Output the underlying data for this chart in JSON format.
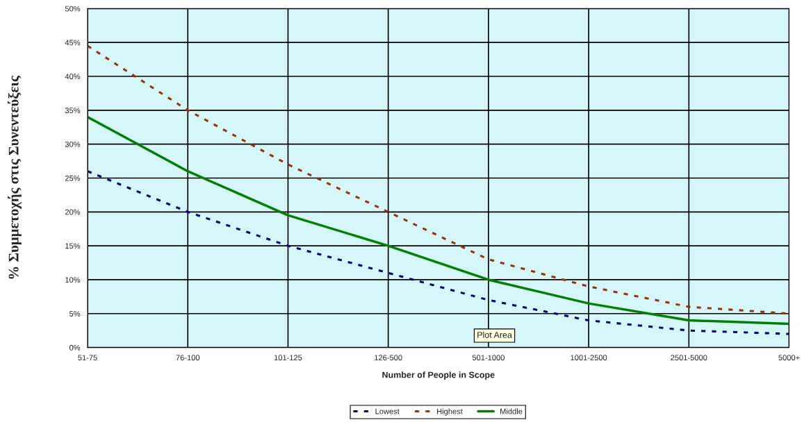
{
  "chart_data": {
    "type": "line",
    "xlabel": "Number of People in Scope",
    "ylabel": "% Συμμετοχής στις Συνεντεύξεις",
    "categories": [
      "51-75",
      "76-100",
      "101-125",
      "126-500",
      "501-1000",
      "1001-2500",
      "2501-5000",
      "5000+"
    ],
    "series": [
      {
        "name": "Lowest",
        "color": "#000080",
        "line_style": "dashed",
        "values": [
          26,
          20,
          15,
          11,
          7,
          4,
          2.5,
          2
        ]
      },
      {
        "name": "Highest",
        "color": "#993300",
        "line_style": "dashed",
        "values": [
          44.5,
          35,
          27,
          20,
          13,
          9,
          6,
          5
        ]
      },
      {
        "name": "Middle",
        "color": "#008000",
        "line_style": "solid",
        "values": [
          34,
          26,
          19.5,
          15,
          10,
          6.5,
          4,
          3.5
        ]
      }
    ],
    "ylim": [
      0,
      50
    ],
    "yticks": [
      {
        "value": 0,
        "label": "0%"
      },
      {
        "value": 5,
        "label": "5%"
      },
      {
        "value": 10,
        "label": "10%"
      },
      {
        "value": 15,
        "label": "15%"
      },
      {
        "value": 20,
        "label": "20%"
      },
      {
        "value": 25,
        "label": "25%"
      },
      {
        "value": 30,
        "label": "30%"
      },
      {
        "value": 35,
        "label": "35%"
      },
      {
        "value": 40,
        "label": "40%"
      },
      {
        "value": 45,
        "label": "45%"
      },
      {
        "value": 50,
        "label": "50%"
      }
    ],
    "grid": true,
    "legend": "bottom",
    "marker": "none",
    "annotations": [
      "Plot Area"
    ]
  }
}
